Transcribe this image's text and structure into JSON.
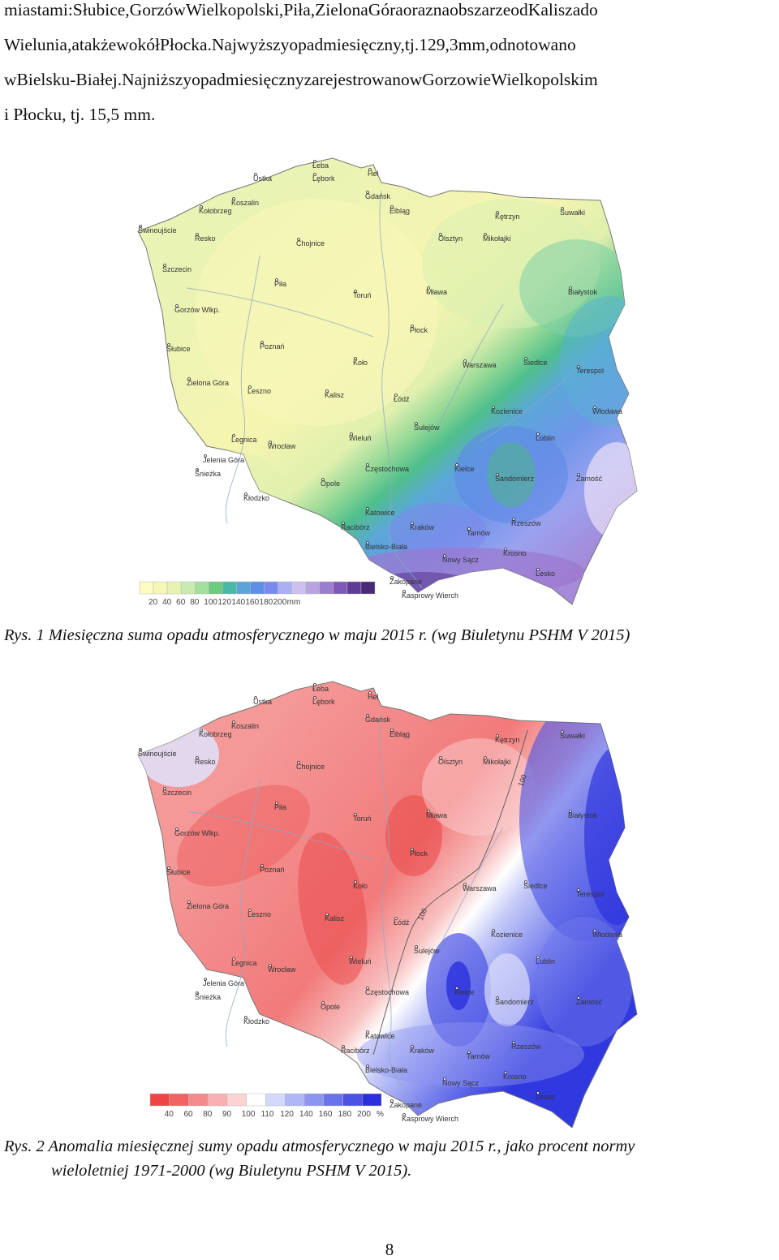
{
  "paragraph": {
    "lines": [
      "miastami: Słubice, Gorzów Wielkopolski, Piła, Zielona Góra oraz na obszarze od Kalisza do",
      "Wielunia, a także wokół Płocka. Najwyższy opad miesięczny, tj. 129,3 mm, odnotowano",
      "w Bielsku-Białej. Najniższy opad miesięczny zarejestrowano w Gorzowie Wielkopolskim",
      "i Płocku, tj. 15,5 mm."
    ]
  },
  "cities": [
    "Łeba",
    "Lębork",
    "Hel",
    "Ustka",
    "Gdańsk",
    "Koszalin",
    "Kołobrzeg",
    "Elbląg",
    "Kętrzyn",
    "Suwałki",
    "Świnoujście",
    "Resko",
    "Chojnice",
    "Olsztyn",
    "Mikołajki",
    "Szczecin",
    "Białystok",
    "Piła",
    "Toruń",
    "Mława",
    "Gorzów Wlkp.",
    "Płock",
    "Słubice",
    "Poznań",
    "Koło",
    "Warszawa",
    "Siedlce",
    "Terespol",
    "Zielona Góra",
    "Leszno",
    "Kalisz",
    "Łódź",
    "Kozienice",
    "Włodawa",
    "Sulejów",
    "Legnica",
    "Wrocław",
    "Wieluń",
    "Lublin",
    "Jelenia Góra",
    "Śnieżka",
    "Częstochowa",
    "Kielce",
    "Sandomierz",
    "Zamość",
    "Opole",
    "Kłodzko",
    "Katowice",
    "Racibórz",
    "Kraków",
    "Tarnów",
    "Rzeszów",
    "Bielsko-Biała",
    "Nowy Sącz",
    "Krosno",
    "Lesko",
    "Zakopane",
    "Kasprowy Wierch"
  ],
  "map1": {
    "legend_ticks": [
      "20",
      "40",
      "60",
      "80",
      "100",
      "120",
      "140",
      "160",
      "180",
      "200"
    ],
    "legend_unit": "mm",
    "legend_colors": [
      "#fefbc0",
      "#f6f7b4",
      "#e6f3b2",
      "#c9ebb0",
      "#a2e0a0",
      "#6ccb7d",
      "#49b8a5",
      "#5aa4d6",
      "#5c8fe6",
      "#7b8af0",
      "#aab0f3",
      "#cdc0ee",
      "#b9a2e0",
      "#9a7dcf",
      "#7d58b6",
      "#5e3b95",
      "#482a78"
    ]
  },
  "map2": {
    "legend_ticks": [
      "40",
      "60",
      "80",
      "90",
      "100",
      "110",
      "120",
      "140",
      "160",
      "180",
      "200"
    ],
    "legend_unit": "%",
    "legend_colors": [
      "#ee4444",
      "#f26464",
      "#f58a8a",
      "#f8b0b0",
      "#fbd3d3",
      "#ffffff",
      "#d4d8fb",
      "#b0b7f6",
      "#8c95f0",
      "#6a73ea",
      "#4b52e4",
      "#2b30dc"
    ],
    "isoline_label": "100"
  },
  "caption1": {
    "text": "Rys. 1 Miesięczna suma opadu atmosferycznego w maju 2015 r. (wg Biuletynu PSHM V 2015)"
  },
  "caption2": {
    "line1": "Rys. 2 Anomalia miesięcznej sumy opadu atmosferycznego w maju 2015 r., jako procent normy",
    "line2": "wieloletniej 1971-2000 (wg Biuletynu PSHM V 2015)."
  },
  "page_number": "8"
}
